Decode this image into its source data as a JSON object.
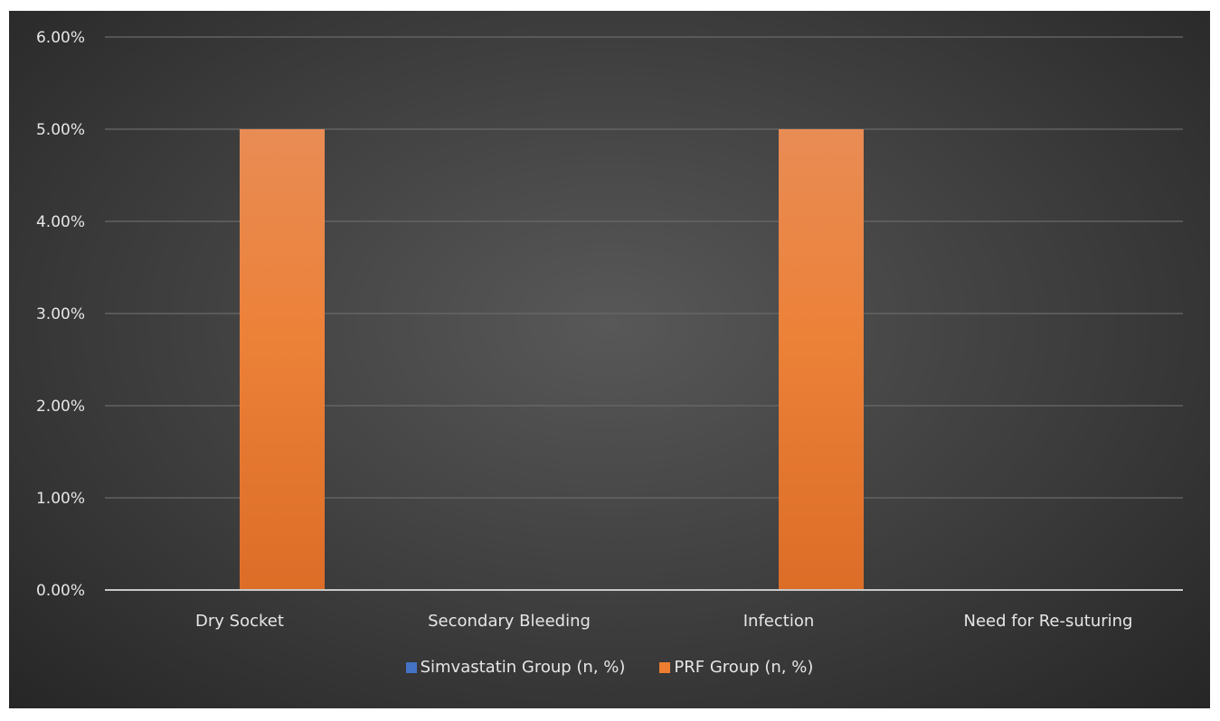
{
  "chart_data": {
    "type": "bar",
    "categories": [
      "Dry Socket",
      "Secondary Bleeding",
      "Infection",
      "Need for Re-suturing"
    ],
    "series": [
      {
        "name": "Simvastatin Group (n, %)",
        "values": [
          0,
          0,
          0,
          0
        ],
        "color": "#4472c4"
      },
      {
        "name": "PRF Group (n, %)",
        "values": [
          5,
          0,
          5,
          0
        ],
        "color": "#ed7d31"
      }
    ],
    "ylim": [
      0,
      6
    ],
    "yticks": [
      "0.00%",
      "1.00%",
      "2.00%",
      "3.00%",
      "4.00%",
      "5.00%",
      "6.00%"
    ],
    "grid": true,
    "legend_position": "bottom",
    "title": "",
    "xlabel": "",
    "ylabel": ""
  }
}
